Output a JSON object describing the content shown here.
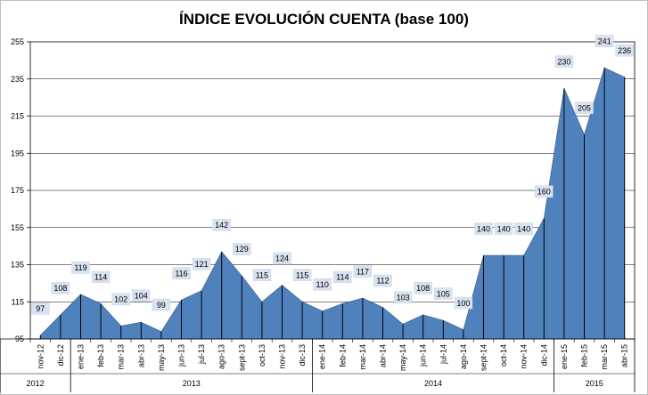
{
  "chart_data": {
    "type": "area",
    "title": "ÍNDICE EVOLUCIÓN CUENTA (base 100)",
    "xlabel": "",
    "ylabel": "",
    "ylim": [
      95,
      255
    ],
    "yticks": [
      95,
      115,
      135,
      155,
      175,
      195,
      215,
      235,
      255
    ],
    "grid": true,
    "area_color": "#4f81bd",
    "categories": [
      "nov-12",
      "dic-12",
      "ene-13",
      "feb-13",
      "mar-13",
      "abr-13",
      "may-13",
      "jun-13",
      "jul-13",
      "ago-13",
      "sept-13",
      "oct-13",
      "nov-13",
      "dic-13",
      "ene-14",
      "feb-14",
      "mar-14",
      "abr-14",
      "may-14",
      "jun-14",
      "jul-14",
      "ago-14",
      "sept-14",
      "oct-14",
      "nov-14",
      "dic-14",
      "ene-15",
      "feb-15",
      "mar-15",
      "abr-15"
    ],
    "values": [
      97,
      108,
      119,
      114,
      102,
      104,
      99,
      116,
      121,
      142,
      129,
      115,
      124,
      115,
      110,
      114,
      117,
      112,
      103,
      108,
      105,
      100,
      140,
      140,
      140,
      160,
      230,
      205,
      241,
      236
    ],
    "years": [
      {
        "label": "2012",
        "start": 0,
        "end": 1
      },
      {
        "label": "2013",
        "start": 2,
        "end": 13
      },
      {
        "label": "2014",
        "start": 14,
        "end": 25
      },
      {
        "label": "2015",
        "start": 26,
        "end": 29
      }
    ]
  }
}
